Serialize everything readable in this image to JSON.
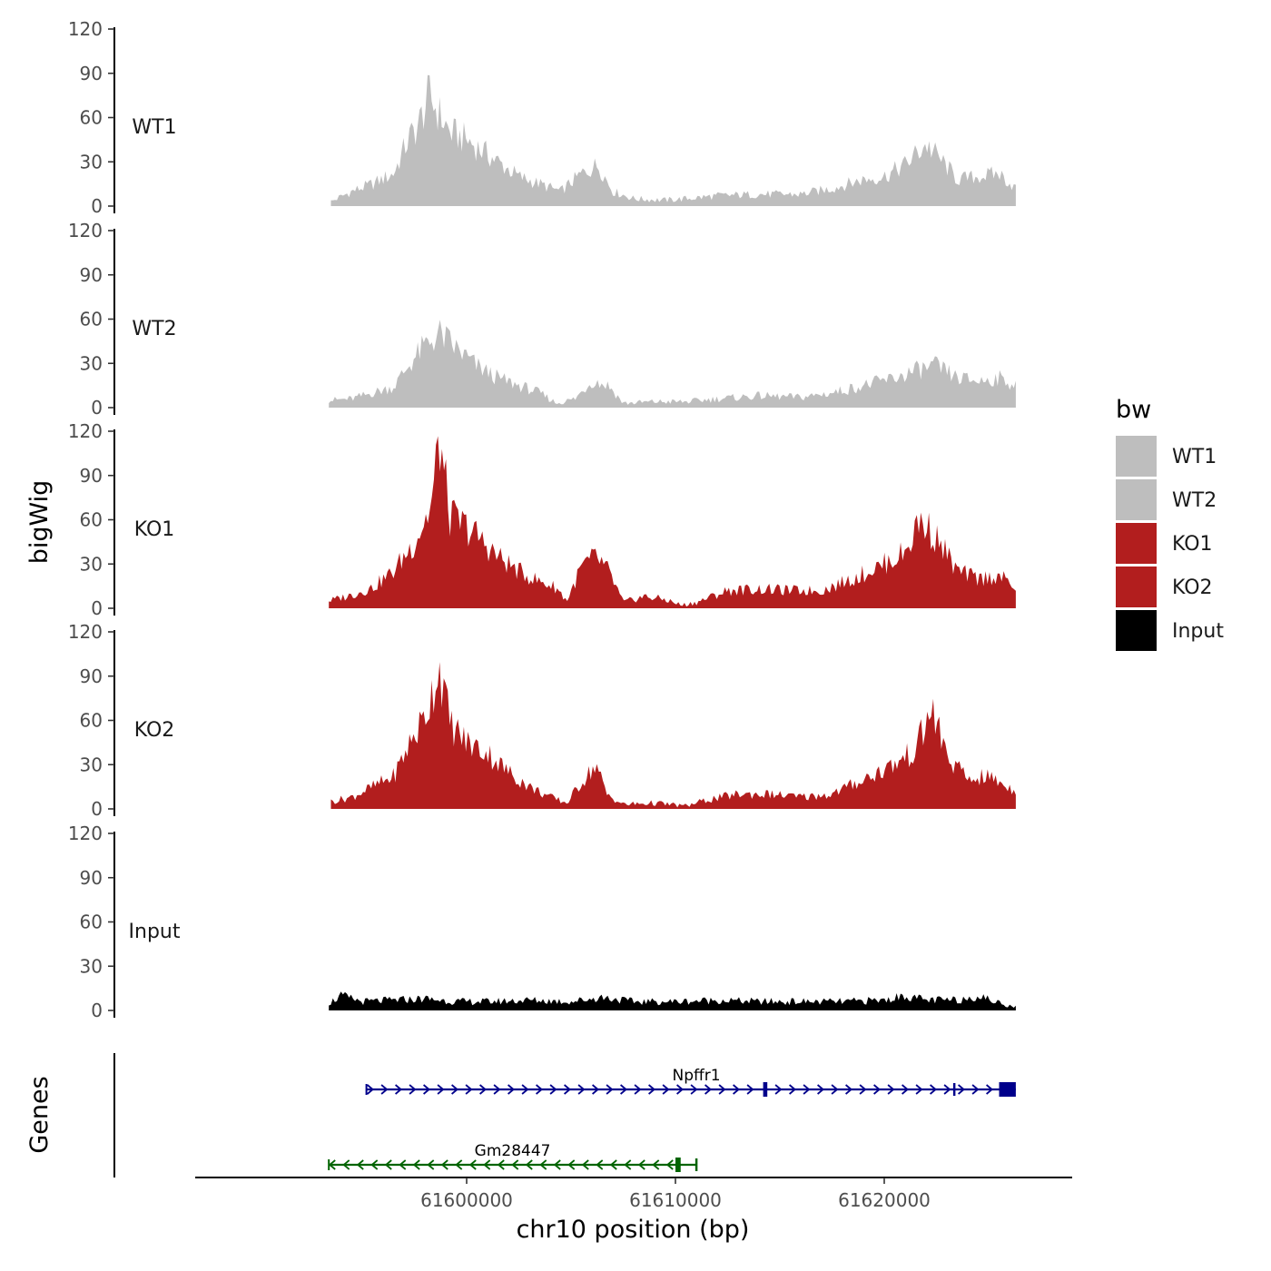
{
  "chart_data": {
    "type": "area",
    "chromosome": "chr10",
    "xlabel": "chr10 position (bp)",
    "ylabel": "bigWig",
    "genes_label": "Genes",
    "xlim": [
      61587000,
      61629000
    ],
    "ylim": [
      0,
      120
    ],
    "xticks": [
      61600000,
      61610000,
      61620000
    ],
    "xtick_labels": [
      "61600000",
      "61610000",
      "61620000"
    ],
    "yticks": [
      0,
      30,
      60,
      90,
      120
    ],
    "ytick_labels": [
      "0",
      "30",
      "60",
      "90",
      "120"
    ],
    "legend": {
      "title": "bw",
      "position": "right",
      "entries": [
        {
          "label": "WT1",
          "color": "#bebebe"
        },
        {
          "label": "WT2",
          "color": "#bebebe"
        },
        {
          "label": "KO1",
          "color": "#b21e1e"
        },
        {
          "label": "KO2",
          "color": "#b21e1e"
        },
        {
          "label": "Input",
          "color": "#000000"
        }
      ]
    },
    "series": [
      {
        "name": "WT1",
        "color": "#bebebe",
        "x_start": 61593500,
        "x_end": 61626300,
        "anchors": [
          [
            61593500,
            3
          ],
          [
            61594500,
            10
          ],
          [
            61595500,
            15
          ],
          [
            61596500,
            22
          ],
          [
            61597200,
            45
          ],
          [
            61597700,
            55
          ],
          [
            61598200,
            75
          ],
          [
            61598700,
            62
          ],
          [
            61599200,
            50
          ],
          [
            61600000,
            45
          ],
          [
            61600700,
            38
          ],
          [
            61601500,
            30
          ],
          [
            61602500,
            20
          ],
          [
            61603500,
            15
          ],
          [
            61604500,
            10
          ],
          [
            61605500,
            22
          ],
          [
            61606300,
            28
          ],
          [
            61607000,
            10
          ],
          [
            61608000,
            5
          ],
          [
            61609500,
            4
          ],
          [
            61610500,
            5
          ],
          [
            61612000,
            7
          ],
          [
            61614000,
            8
          ],
          [
            61616000,
            8
          ],
          [
            61617500,
            12
          ],
          [
            61619000,
            18
          ],
          [
            61620000,
            20
          ],
          [
            61621000,
            28
          ],
          [
            61622000,
            42
          ],
          [
            61622800,
            30
          ],
          [
            61623500,
            18
          ],
          [
            61624500,
            20
          ],
          [
            61625500,
            22
          ],
          [
            61626300,
            12
          ]
        ]
      },
      {
        "name": "WT2",
        "color": "#bebebe",
        "x_start": 61593400,
        "x_end": 61626300,
        "anchors": [
          [
            61593400,
            5
          ],
          [
            61594500,
            6
          ],
          [
            61595500,
            10
          ],
          [
            61596500,
            14
          ],
          [
            61597300,
            30
          ],
          [
            61598000,
            42
          ],
          [
            61598700,
            50
          ],
          [
            61599500,
            40
          ],
          [
            61600500,
            28
          ],
          [
            61601500,
            20
          ],
          [
            61602500,
            15
          ],
          [
            61603500,
            10
          ],
          [
            61604300,
            3
          ],
          [
            61605200,
            6
          ],
          [
            61606000,
            18
          ],
          [
            61606800,
            15
          ],
          [
            61607500,
            3
          ],
          [
            61609000,
            4
          ],
          [
            61610500,
            4
          ],
          [
            61612000,
            6
          ],
          [
            61614000,
            8
          ],
          [
            61616000,
            7
          ],
          [
            61617500,
            10
          ],
          [
            61619000,
            15
          ],
          [
            61620500,
            20
          ],
          [
            61621500,
            25
          ],
          [
            61622500,
            28
          ],
          [
            61623500,
            20
          ],
          [
            61624500,
            18
          ],
          [
            61625500,
            20
          ],
          [
            61626300,
            15
          ]
        ]
      },
      {
        "name": "KO1",
        "color": "#b21e1e",
        "x_start": 61593400,
        "x_end": 61626300,
        "anchors": [
          [
            61593400,
            5
          ],
          [
            61594500,
            9
          ],
          [
            61595500,
            14
          ],
          [
            61596500,
            25
          ],
          [
            61597500,
            45
          ],
          [
            61598300,
            68
          ],
          [
            61598700,
            115
          ],
          [
            61599200,
            62
          ],
          [
            61600000,
            55
          ],
          [
            61600800,
            45
          ],
          [
            61601500,
            35
          ],
          [
            61602500,
            25
          ],
          [
            61603500,
            18
          ],
          [
            61604300,
            14
          ],
          [
            61604800,
            5
          ],
          [
            61605500,
            28
          ],
          [
            61606200,
            35
          ],
          [
            61606800,
            25
          ],
          [
            61607500,
            4
          ],
          [
            61608500,
            8
          ],
          [
            61609500,
            6
          ],
          [
            61610300,
            2
          ],
          [
            61611000,
            4
          ],
          [
            61612500,
            12
          ],
          [
            61614000,
            13
          ],
          [
            61615500,
            12
          ],
          [
            61617000,
            12
          ],
          [
            61618500,
            20
          ],
          [
            61620000,
            30
          ],
          [
            61621000,
            38
          ],
          [
            61621700,
            60
          ],
          [
            61622500,
            48
          ],
          [
            61623500,
            25
          ],
          [
            61624500,
            20
          ],
          [
            61625500,
            22
          ],
          [
            61626300,
            14
          ]
        ]
      },
      {
        "name": "KO2",
        "color": "#b21e1e",
        "x_start": 61593500,
        "x_end": 61626300,
        "anchors": [
          [
            61593500,
            5
          ],
          [
            61594500,
            8
          ],
          [
            61595500,
            15
          ],
          [
            61596500,
            22
          ],
          [
            61597300,
            45
          ],
          [
            61598000,
            62
          ],
          [
            61598700,
            97
          ],
          [
            61599200,
            58
          ],
          [
            61600000,
            45
          ],
          [
            61601000,
            38
          ],
          [
            61602000,
            25
          ],
          [
            61603000,
            15
          ],
          [
            61604000,
            8
          ],
          [
            61604800,
            4
          ],
          [
            61605500,
            18
          ],
          [
            61606200,
            30
          ],
          [
            61606700,
            10
          ],
          [
            61607500,
            3
          ],
          [
            61609000,
            4
          ],
          [
            61610500,
            2
          ],
          [
            61611500,
            6
          ],
          [
            61613000,
            10
          ],
          [
            61614500,
            10
          ],
          [
            61616000,
            8
          ],
          [
            61617500,
            10
          ],
          [
            61619000,
            20
          ],
          [
            61620500,
            30
          ],
          [
            61621500,
            40
          ],
          [
            61622300,
            68
          ],
          [
            61623000,
            35
          ],
          [
            61624000,
            20
          ],
          [
            61625000,
            22
          ],
          [
            61626300,
            12
          ]
        ]
      },
      {
        "name": "Input",
        "color": "#000000",
        "x_start": 61593400,
        "x_end": 61626300,
        "anchors": [
          [
            61593400,
            5
          ],
          [
            61594000,
            10
          ],
          [
            61595000,
            6
          ],
          [
            61596500,
            7
          ],
          [
            61598000,
            8
          ],
          [
            61599500,
            6
          ],
          [
            61601000,
            6
          ],
          [
            61603000,
            7
          ],
          [
            61605000,
            6
          ],
          [
            61606500,
            9
          ],
          [
            61608000,
            6
          ],
          [
            61610000,
            6
          ],
          [
            61612000,
            7
          ],
          [
            61614000,
            6
          ],
          [
            61616000,
            6
          ],
          [
            61618000,
            6
          ],
          [
            61620000,
            7
          ],
          [
            61621000,
            10
          ],
          [
            61622000,
            7
          ],
          [
            61623500,
            7
          ],
          [
            61624500,
            10
          ],
          [
            61625500,
            5
          ],
          [
            61626300,
            3
          ]
        ]
      }
    ],
    "genes": [
      {
        "name": "Npffr1",
        "strand": "+",
        "color": "#00008b",
        "start": 61595200,
        "end": 61626300,
        "label_x": 61611000,
        "exons": [
          {
            "start": 61614200,
            "end": 61614400,
            "kind": "cds"
          },
          {
            "start": 61623300,
            "end": 61623330,
            "kind": "utr"
          },
          {
            "start": 61625500,
            "end": 61626300,
            "kind": "cds"
          }
        ]
      },
      {
        "name": "Gm28447",
        "strand": "-",
        "color": "#006400",
        "start": 61593400,
        "end": 61611000,
        "label_x": 61602200,
        "exons": [
          {
            "start": 61610000,
            "end": 61610250,
            "kind": "cds"
          },
          {
            "start": 61610950,
            "end": 61611000,
            "kind": "utr"
          }
        ]
      }
    ]
  }
}
